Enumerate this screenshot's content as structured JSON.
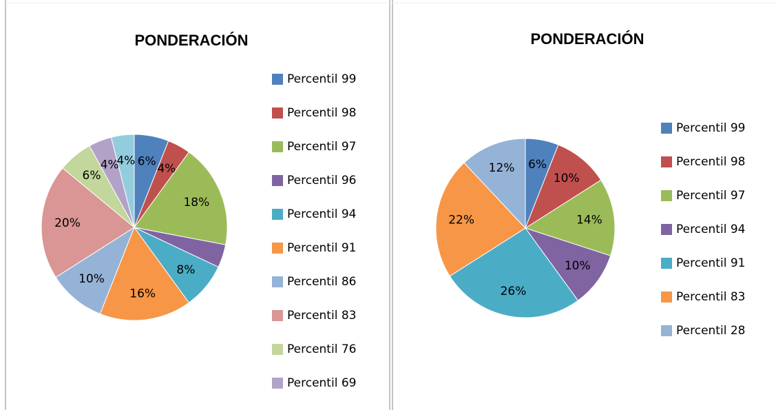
{
  "chart_data": [
    {
      "type": "pie",
      "title": "PONDERACIÓN",
      "categories": [
        "Percentil 99",
        "Percentil 98",
        "Percentil 97",
        "Percentil 96",
        "Percentil 94",
        "Percentil 91",
        "Percentil 86",
        "Percentil 83",
        "Percentil 76",
        "Percentil 69",
        null
      ],
      "values": [
        6,
        4,
        18,
        4,
        8,
        16,
        10,
        20,
        6,
        4,
        4
      ],
      "value_labels": [
        "6%",
        "4%",
        "18%",
        null,
        "8%",
        "16%",
        "10%",
        "20%",
        "6%",
        "4%",
        "4%"
      ],
      "colors": [
        "#4f81bd",
        "#c0504d",
        "#9bbb59",
        "#8064a2",
        "#4bacc6",
        "#f79646",
        "#95b3d7",
        "#d99694",
        "#c3d69b",
        "#b2a2c7",
        "#93cddd"
      ]
    },
    {
      "type": "pie",
      "title": "PONDERACIÓN",
      "categories": [
        "Percentil 99",
        "Percentil 98",
        "Percentil 97",
        "Percentil 94",
        "Percentil 91",
        "Percentil 83",
        "Percentil 28"
      ],
      "values": [
        6,
        10,
        14,
        10,
        26,
        22,
        12
      ],
      "value_labels": [
        "6%",
        "10%",
        "14%",
        "10%",
        "26%",
        "22%",
        "12%"
      ],
      "colors": [
        "#4f81bd",
        "#c0504d",
        "#9bbb59",
        "#8064a2",
        "#4bacc6",
        "#f79646",
        "#95b3d7"
      ]
    }
  ]
}
